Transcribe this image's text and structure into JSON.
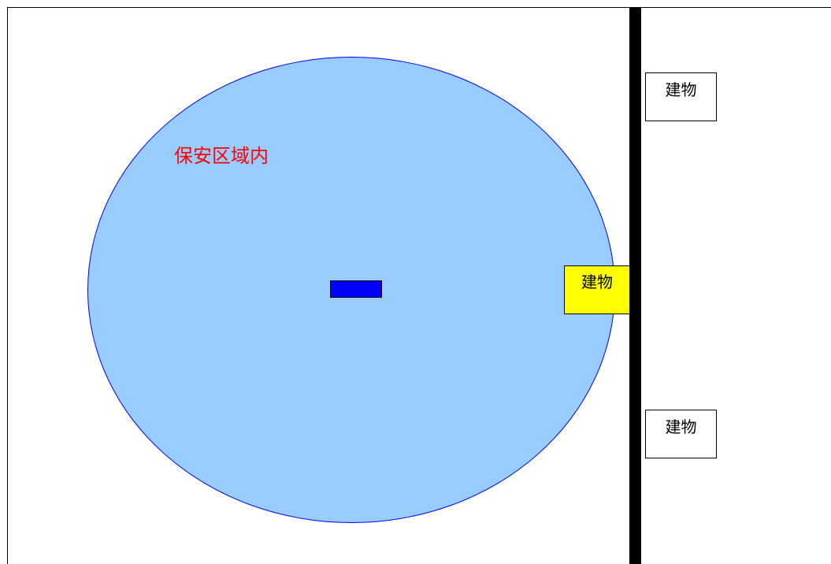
{
  "diagram": {
    "zone_label": "保安区域内",
    "buildings": {
      "top": "建物",
      "middle": "建物",
      "bottom": "建物"
    }
  },
  "colors": {
    "zone_fill": "#99ccff",
    "zone_border": "#0000ff",
    "zone_label_text": "#ff0000",
    "center_marker": "#0000ff",
    "highlighted_building": "#ffff00",
    "wall": "#000000"
  }
}
